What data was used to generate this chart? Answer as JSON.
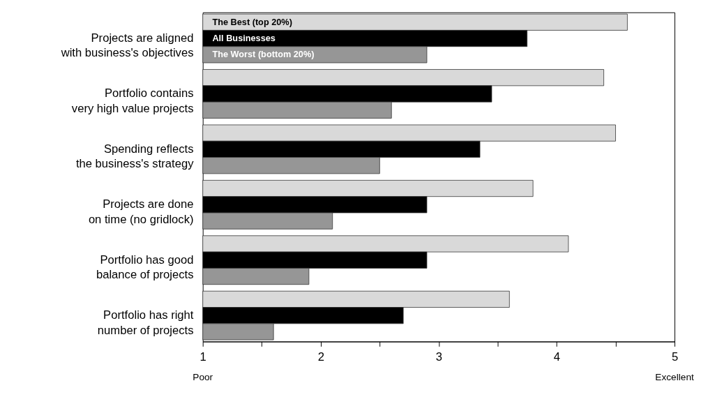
{
  "chart_data": {
    "type": "bar",
    "orientation": "horizontal",
    "categories": [
      "Projects are aligned\nwith business's objectives",
      "Portfolio contains\nvery high value projects",
      "Spending reflects\nthe business's strategy",
      "Projects are done\non time (no gridlock)",
      "Portfolio has good\n\nbalance of projects",
      "Portfolio has right\nnumber of projects"
    ],
    "series": [
      {
        "name": "The Best (top 20%)",
        "color": "#d9d9d9",
        "values": [
          4.6,
          4.4,
          4.5,
          3.8,
          4.1,
          3.6
        ]
      },
      {
        "name": "All Businesses",
        "color": "#000000",
        "values": [
          3.75,
          3.45,
          3.35,
          2.9,
          2.9,
          2.7
        ]
      },
      {
        "name": "The Worst (bottom 20%)",
        "color": "#969696",
        "values": [
          2.9,
          2.6,
          2.5,
          2.1,
          1.9,
          1.6
        ]
      }
    ],
    "xlim": [
      1,
      5
    ],
    "xticks": [
      1,
      {
        "value": 1.5,
        "label": null
      },
      2,
      {
        "value": 2.5,
        "label": null
      },
      3,
      {
        "value": 3.5,
        "label": null
      },
      4,
      {
        "value": 4.5,
        "label": null
      },
      5
    ],
    "annotations": [
      "Poor",
      "Excellent"
    ],
    "grid": false
  }
}
